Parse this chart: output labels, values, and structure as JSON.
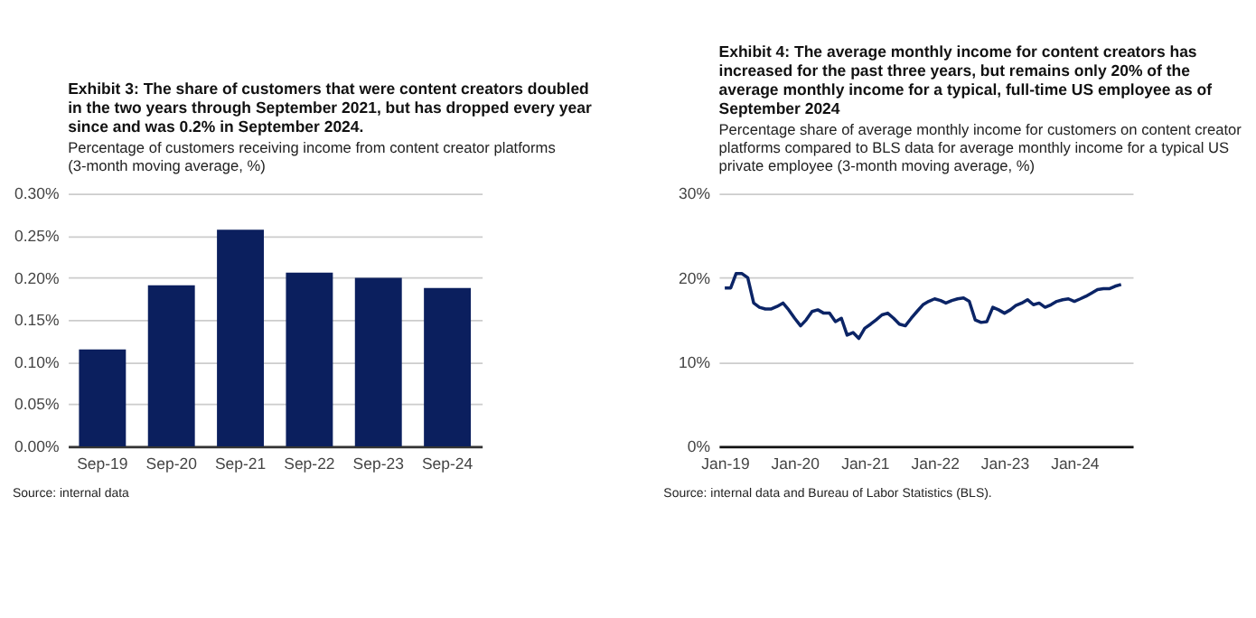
{
  "chart_data": [
    {
      "type": "bar",
      "title": "Exhibit 3: The share of customers that were content creators doubled in the two years through September 2021, but has dropped every year since and was 0.2% in September 2024.",
      "subtitle": "Percentage of customers receiving income from content creator platforms (3-month moving average, %)",
      "categories": [
        "Sep-19",
        "Sep-20",
        "Sep-21",
        "Sep-22",
        "Sep-23",
        "Sep-24"
      ],
      "values": [
        0.115,
        0.191,
        0.257,
        0.206,
        0.2,
        0.188
      ],
      "color": "#0b1f5e",
      "ylim": [
        0,
        0.3
      ],
      "yticks": [
        {
          "value": 0,
          "label": "0.00%"
        },
        {
          "value": 0.05,
          "label": "0.05%"
        },
        {
          "value": 0.1,
          "label": "0.10%"
        },
        {
          "value": 0.15,
          "label": "0.15%"
        },
        {
          "value": 0.2,
          "label": "0.20%"
        },
        {
          "value": 0.25,
          "label": "0.25%"
        },
        {
          "value": 0.3,
          "label": "0.30%"
        }
      ],
      "grid": "y",
      "annotations": [
        "Source: internal data"
      ]
    },
    {
      "type": "line",
      "title": "Exhibit 4: The average monthly income for content creators has increased for the past three years, but remains only 20% of the average monthly income for a typical, full-time US employee as of September 2024",
      "subtitle": "Percentage share of average monthly income for customers on content creator platforms compared to BLS data for average monthly income for a typical US private employee (3-month moving average, %)",
      "x": [
        "2019-01",
        "2019-02",
        "2019-03",
        "2019-04",
        "2019-05",
        "2019-06",
        "2019-07",
        "2019-08",
        "2019-09",
        "2019-10",
        "2019-11",
        "2019-12",
        "2020-01",
        "2020-02",
        "2020-03",
        "2020-04",
        "2020-05",
        "2020-06",
        "2020-07",
        "2020-08",
        "2020-09",
        "2020-10",
        "2020-11",
        "2020-12",
        "2021-01",
        "2021-02",
        "2021-03",
        "2021-04",
        "2021-05",
        "2021-06",
        "2021-07",
        "2021-08",
        "2021-09",
        "2021-10",
        "2021-11",
        "2021-12",
        "2022-01",
        "2022-02",
        "2022-03",
        "2022-04",
        "2022-05",
        "2022-06",
        "2022-07",
        "2022-08",
        "2022-09",
        "2022-10",
        "2022-11",
        "2022-12",
        "2023-01",
        "2023-02",
        "2023-03",
        "2023-04",
        "2023-05",
        "2023-06",
        "2023-07",
        "2023-08",
        "2023-09",
        "2023-10",
        "2023-11",
        "2023-12",
        "2024-01",
        "2024-02",
        "2024-03",
        "2024-04",
        "2024-05",
        "2024-06",
        "2024-07",
        "2024-08",
        "2024-09"
      ],
      "values": [
        18.8,
        18.8,
        20.5,
        20.5,
        20.0,
        17.0,
        16.5,
        16.3,
        16.3,
        16.6,
        17.0,
        16.2,
        15.2,
        14.3,
        15.0,
        16.0,
        16.2,
        15.8,
        15.8,
        14.8,
        15.2,
        13.2,
        13.5,
        12.8,
        14.0,
        14.5,
        15.0,
        15.6,
        15.8,
        15.2,
        14.5,
        14.3,
        15.2,
        16.0,
        16.8,
        17.2,
        17.5,
        17.3,
        17.0,
        17.3,
        17.5,
        17.6,
        17.2,
        15.0,
        14.7,
        14.8,
        16.5,
        16.2,
        15.8,
        16.2,
        16.7,
        17.0,
        17.4,
        16.8,
        17.0,
        16.5,
        16.8,
        17.2,
        17.4,
        17.5,
        17.2,
        17.5,
        17.8,
        18.2,
        18.6,
        18.7,
        18.7,
        19.0,
        19.2
      ],
      "color": "#0b2466",
      "xlim": [
        "2018-12-01",
        "2024-11-01"
      ],
      "xticks": [
        {
          "value": "2019-01",
          "label": "Jan-19"
        },
        {
          "value": "2020-01",
          "label": "Jan-20"
        },
        {
          "value": "2021-01",
          "label": "Jan-21"
        },
        {
          "value": "2022-01",
          "label": "Jan-22"
        },
        {
          "value": "2023-01",
          "label": "Jan-23"
        },
        {
          "value": "2024-01",
          "label": "Jan-24"
        }
      ],
      "ylim": [
        0,
        30
      ],
      "yticks": [
        {
          "value": 0,
          "label": "0%"
        },
        {
          "value": 10,
          "label": "10%"
        },
        {
          "value": 20,
          "label": "20%"
        },
        {
          "value": 30,
          "label": "30%"
        }
      ],
      "grid": "y",
      "line_style": "solid",
      "annotations": [
        "Source: internal data and Bureau of Labor Statistics (BLS)."
      ]
    }
  ]
}
